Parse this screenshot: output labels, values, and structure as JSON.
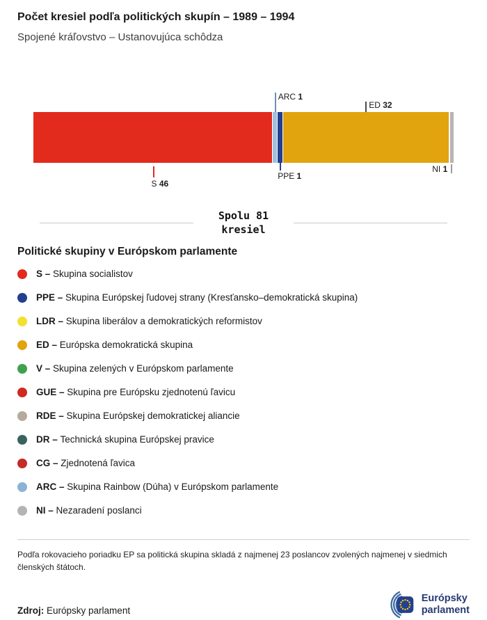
{
  "header": {
    "title": "Počet kresiel podľa politických skupín – 1989 – 1994",
    "subtitle": "Spojené kráľovstvo – Ustanovujúca schôdza"
  },
  "chart_data": {
    "type": "bar",
    "orientation": "horizontal",
    "stacked": true,
    "title": "Počet kresiel podľa politických skupín – 1989 – 1994",
    "subtitle": "Spojené kráľovstvo – Ustanovujúca schôdza",
    "total": 81,
    "total_label": "Spolu 81\nkresiel",
    "segments": [
      {
        "code": "S",
        "value": 46,
        "color": "#e22a1d",
        "line_color": "#e22a1d",
        "callout_side": "below"
      },
      {
        "code": "ARC",
        "value": 1,
        "color": "#9fc0de",
        "line_color": "#6f8fb5",
        "callout_side": "above"
      },
      {
        "code": "PPE",
        "value": 1,
        "color": "#233f8f",
        "line_color": "#233f8f",
        "callout_side": "below"
      },
      {
        "code": "ED",
        "value": 32,
        "color": "#e1a40e",
        "line_color": "#4a4a4a",
        "callout_side": "above"
      },
      {
        "code": "NI",
        "value": 1,
        "color": "#b5b5b5",
        "line_color": "#9a9a9a",
        "callout_side": "below"
      }
    ]
  },
  "legend": {
    "title": "Politické skupiny v Európskom parlamente",
    "items": [
      {
        "code": "S",
        "color": "#e22a1d",
        "label": "Skupina socialistov"
      },
      {
        "code": "PPE",
        "color": "#233f8f",
        "label": "Skupina Európskej ľudovej strany (Kresťansko–demokratická skupina)"
      },
      {
        "code": "LDR",
        "color": "#f2e12e",
        "label": "Skupina liberálov a demokratických reformistov"
      },
      {
        "code": "ED",
        "color": "#e1a40e",
        "label": "Európska demokratická skupina"
      },
      {
        "code": "V",
        "color": "#41a050",
        "label": "Skupina zelených v Európskom parlamente"
      },
      {
        "code": "GUE",
        "color": "#cf2a1f",
        "label": "Skupina pre Európsku zjednotenú ľavicu"
      },
      {
        "code": "RDE",
        "color": "#b5ab9d",
        "label": "Skupina Európskej demokratickej aliancie"
      },
      {
        "code": "DR",
        "color": "#3a6360",
        "label": "Technická skupina Európskej pravice"
      },
      {
        "code": "CG",
        "color": "#c52b28",
        "label": "Zjednotená ľavica"
      },
      {
        "code": "ARC",
        "color": "#8cb3d6",
        "label": "Skupina Rainbow (Dúha) v Európskom parlamente"
      },
      {
        "code": "NI",
        "color": "#b4b4b4",
        "label": "Nezaradení poslanci"
      }
    ]
  },
  "footer": {
    "note": "Podľa rokovacieho poriadku EP sa politická skupina skladá z najmenej 23 poslancov zvolených najmenej v siedmich členských štátoch.",
    "source_label": "Zdroj:",
    "source_value": "Európsky parlament",
    "logo_lines": [
      "Európsky",
      "parlament"
    ]
  }
}
